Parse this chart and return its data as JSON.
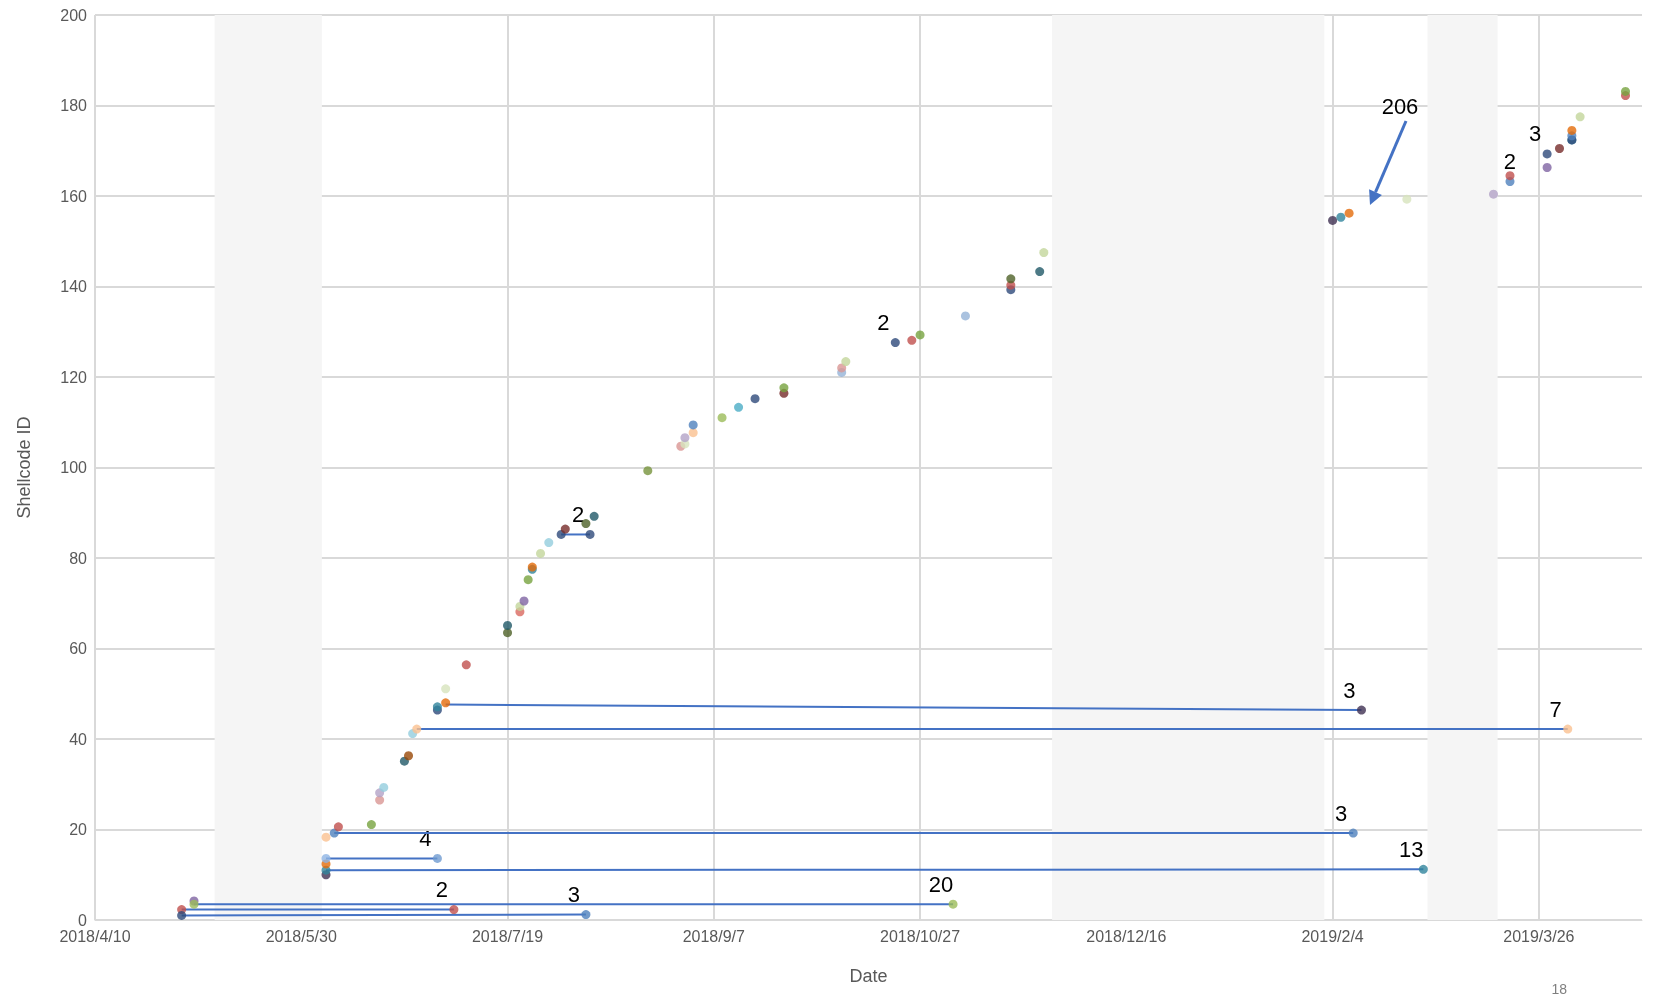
{
  "chart_data": {
    "type": "scatter",
    "xlabel": "Date",
    "ylabel": "Shellcode ID",
    "xlim": [
      "2018-04-10",
      "2019-04-20"
    ],
    "xticks": [
      {
        "value": "2018-04-10",
        "label": "2018/4/10"
      },
      {
        "value": "2018-05-30",
        "label": "2018/5/30"
      },
      {
        "value": "2018-07-19",
        "label": "2018/7/19"
      },
      {
        "value": "2018-09-07",
        "label": "2018/9/7"
      },
      {
        "value": "2018-10-27",
        "label": "2018/10/27"
      },
      {
        "value": "2018-12-16",
        "label": "2018/12/16"
      },
      {
        "value": "2019-02-04",
        "label": "2019/2/4"
      },
      {
        "value": "2019-03-26",
        "label": "2019/3/26"
      }
    ],
    "ylim": [
      0,
      200
    ],
    "yticks": [
      0,
      20,
      40,
      60,
      80,
      100,
      120,
      140,
      160,
      180,
      200
    ],
    "grid": true,
    "bands": [
      {
        "axis": "x",
        "from": "2018-05-09",
        "to": "2018-06-04",
        "color": "#f5f5f5"
      },
      {
        "axis": "x",
        "from": "2018-11-28",
        "to": "2019-02-02",
        "color": "#f5f5f5"
      },
      {
        "axis": "x",
        "from": "2019-02-27",
        "to": "2019-03-16",
        "color": "#f5f5f5"
      }
    ],
    "series": [
      {
        "type": "line",
        "marker": "none",
        "color": "#4472c4",
        "x": [
          "2018-05-01",
          "2018-08-07"
        ],
        "values": [
          1,
          1.2
        ]
      },
      {
        "type": "line",
        "marker": "none",
        "color": "#4472c4",
        "x": [
          "2018-05-01",
          "2018-07-06"
        ],
        "values": [
          2.3,
          2.3
        ]
      },
      {
        "type": "line",
        "marker": "none",
        "color": "#4472c4",
        "x": [
          "2018-05-04",
          "2018-11-04"
        ],
        "values": [
          3.5,
          3.5
        ]
      },
      {
        "type": "line",
        "marker": "none",
        "color": "#4472c4",
        "x": [
          "2018-06-05",
          "2019-02-26"
        ],
        "values": [
          11,
          11.2
        ]
      },
      {
        "type": "line",
        "marker": "none",
        "color": "#4472c4",
        "x": [
          "2018-06-05",
          "2018-07-02"
        ],
        "values": [
          13.6,
          13.6
        ]
      },
      {
        "type": "line",
        "marker": "none",
        "color": "#4472c4",
        "x": [
          "2018-06-07",
          "2019-02-09"
        ],
        "values": [
          19.2,
          19.2
        ]
      },
      {
        "type": "line",
        "marker": "none",
        "color": "#4472c4",
        "x": [
          "2018-06-27",
          "2019-04-02"
        ],
        "values": [
          42.2,
          42.2
        ]
      },
      {
        "type": "line",
        "marker": "none",
        "color": "#4472c4",
        "x": [
          "2018-07-04",
          "2019-02-11"
        ],
        "values": [
          47.6,
          46.4
        ]
      },
      {
        "type": "line",
        "marker": "none",
        "color": "#4472c4",
        "x": [
          "2018-08-01",
          "2018-08-08"
        ],
        "values": [
          85.2,
          85.2
        ]
      },
      {
        "marker": "circle",
        "x": [
          "2018-05-01",
          "2018-05-01",
          "2018-05-04",
          "2018-05-04",
          "2018-08-07",
          "2018-07-06",
          "2018-11-04",
          "2018-06-05",
          "2018-06-05",
          "2018-06-05",
          "2018-06-05",
          "2019-02-26",
          "2018-07-02",
          "2018-06-05",
          "2018-06-07",
          "2018-06-08",
          "2019-02-09",
          "2018-06-16",
          "2018-06-18",
          "2018-06-18",
          "2018-06-19",
          "2018-06-24",
          "2018-06-25",
          "2018-06-26",
          "2018-06-27",
          "2019-04-02",
          "2018-07-02",
          "2018-07-02",
          "2018-07-04",
          "2019-02-11",
          "2018-07-04",
          "2018-07-09",
          "2018-07-19",
          "2018-07-19",
          "2018-07-22",
          "2018-07-22",
          "2018-07-23",
          "2018-07-24",
          "2018-07-25",
          "2018-07-25",
          "2018-07-27",
          "2018-07-29",
          "2018-08-01",
          "2018-08-02",
          "2018-08-08",
          "2018-08-07",
          "2018-08-09",
          "2018-08-22",
          "2018-08-30",
          "2018-08-31",
          "2018-08-31",
          "2018-09-02",
          "2018-09-02",
          "2018-09-09",
          "2018-09-13",
          "2018-09-17",
          "2018-09-24",
          "2018-09-24",
          "2018-10-08",
          "2018-10-08",
          "2018-10-09",
          "2018-10-21",
          "2018-10-25",
          "2018-10-27",
          "2018-11-07",
          "2018-11-18",
          "2018-11-18",
          "2018-11-18",
          "2018-11-25",
          "2018-11-26",
          "2019-02-04",
          "2019-02-06",
          "2019-02-08",
          "2019-02-22",
          "2019-03-15",
          "2019-03-19",
          "2019-03-19",
          "2019-03-28",
          "2019-03-28",
          "2019-03-31",
          "2019-04-03",
          "2019-04-03",
          "2019-04-03",
          "2019-04-03",
          "2019-04-05",
          "2019-04-16",
          "2019-04-16"
        ],
        "values": [
          2.3,
          1,
          4.2,
          3.5,
          1.2,
          2.3,
          3.5,
          10,
          11,
          12.4,
          13.6,
          11.2,
          13.6,
          18.3,
          19.2,
          20.6,
          19.2,
          21.1,
          26.5,
          28.1,
          29.3,
          35.1,
          36.3,
          41.2,
          42.2,
          42.2,
          46.4,
          47.1,
          48,
          46.4,
          51.1,
          56.4,
          63.5,
          65.1,
          68.1,
          69.3,
          70.5,
          75.2,
          77.5,
          78,
          81,
          83.4,
          85.2,
          86.4,
          85.2,
          87.6,
          89.2,
          99.3,
          104.7,
          105.2,
          106.6,
          107.7,
          109.4,
          111,
          113.3,
          115.2,
          116.4,
          117.6,
          121,
          122,
          123.4,
          127.6,
          128.1,
          129.3,
          133.5,
          139.3,
          140.3,
          141.7,
          143.3,
          147.5,
          154.6,
          155.3,
          156.2,
          159.3,
          160.4,
          163.2,
          164.5,
          166.3,
          169.3,
          170.5,
          172.4,
          172.4,
          173.3,
          174.5,
          177.5,
          182.2,
          183.1
        ],
        "colors": [
          "#c0504d",
          "#2e4a7a",
          "#8064a2",
          "#9bbb59",
          "#4f81bd",
          "#c0504d",
          "#9bbb59",
          "#403152",
          "#31859c",
          "#e46c0a",
          "#8eb4e3",
          "#31859c",
          "#6f9bd1",
          "#fac090",
          "#4f81bd",
          "#c0504d",
          "#4f81bd",
          "#77a33e",
          "#d99694",
          "#b3a2c7",
          "#93cddd",
          "#215968",
          "#984807",
          "#93cddd",
          "#fac090",
          "#fac090",
          "#2e4a7a",
          "#31859c",
          "#e46c0a",
          "#403152",
          "#d7e4bd",
          "#c0504d",
          "#4f6228",
          "#215968",
          "#d9695f",
          "#c3d69b",
          "#8064a2",
          "#77a33e",
          "#31859c",
          "#e46c0a",
          "#c3d69b",
          "#93cddd",
          "#2e4a7a",
          "#772c2a",
          "#2e4a7a",
          "#4f6228",
          "#215968",
          "#77933c",
          "#d99694",
          "#d7e4bd",
          "#b3a2c7",
          "#fac090",
          "#4f81bd",
          "#9bbb59",
          "#4bacc6",
          "#2e4a7a",
          "#772c2a",
          "#77a33e",
          "#95b3d7",
          "#d99694",
          "#c3d69b",
          "#2e4a7a",
          "#c0504d",
          "#77a33e",
          "#95b3d7",
          "#2e4a7a",
          "#c0504d",
          "#4f6228",
          "#215968",
          "#c3d69b",
          "#403152",
          "#31859c",
          "#e46c0a",
          "#d7e4bd",
          "#b3a2c7",
          "#4f81bd",
          "#c0504d",
          "#8064a2",
          "#2e4a7a",
          "#772c2a",
          "#31859c",
          "#2e4a7a",
          "#4f81bd",
          "#e46c0a",
          "#c3d69b",
          "#c0504d",
          "#77a33e"
        ]
      }
    ],
    "annotations": [
      "206",
      {
        "text": "3",
        "x": "2018-08-07",
        "y": 1.2
      },
      {
        "text": "2",
        "x": "2018-07-06",
        "y": 2.3
      },
      {
        "text": "20",
        "x": "2018-11-04",
        "y": 3.5
      },
      {
        "text": "13",
        "x": "2019-02-26",
        "y": 11.2
      },
      {
        "text": "4",
        "x": "2018-07-02",
        "y": 13.6
      },
      {
        "text": "3",
        "x": "2019-02-09",
        "y": 19.2
      },
      {
        "text": "7",
        "x": "2019-04-02",
        "y": 42.2
      },
      {
        "text": "3",
        "x": "2019-02-11",
        "y": 46.4
      },
      {
        "text": "2",
        "x": "2018-08-08",
        "y": 85.2
      },
      {
        "text": "2",
        "x": "2018-10-21",
        "y": 127.6
      },
      {
        "text": "2",
        "x": "2019-03-19",
        "y": 163.2
      },
      {
        "text": "3",
        "x": "2019-03-28",
        "y": 169.3
      },
      "18"
    ]
  }
}
